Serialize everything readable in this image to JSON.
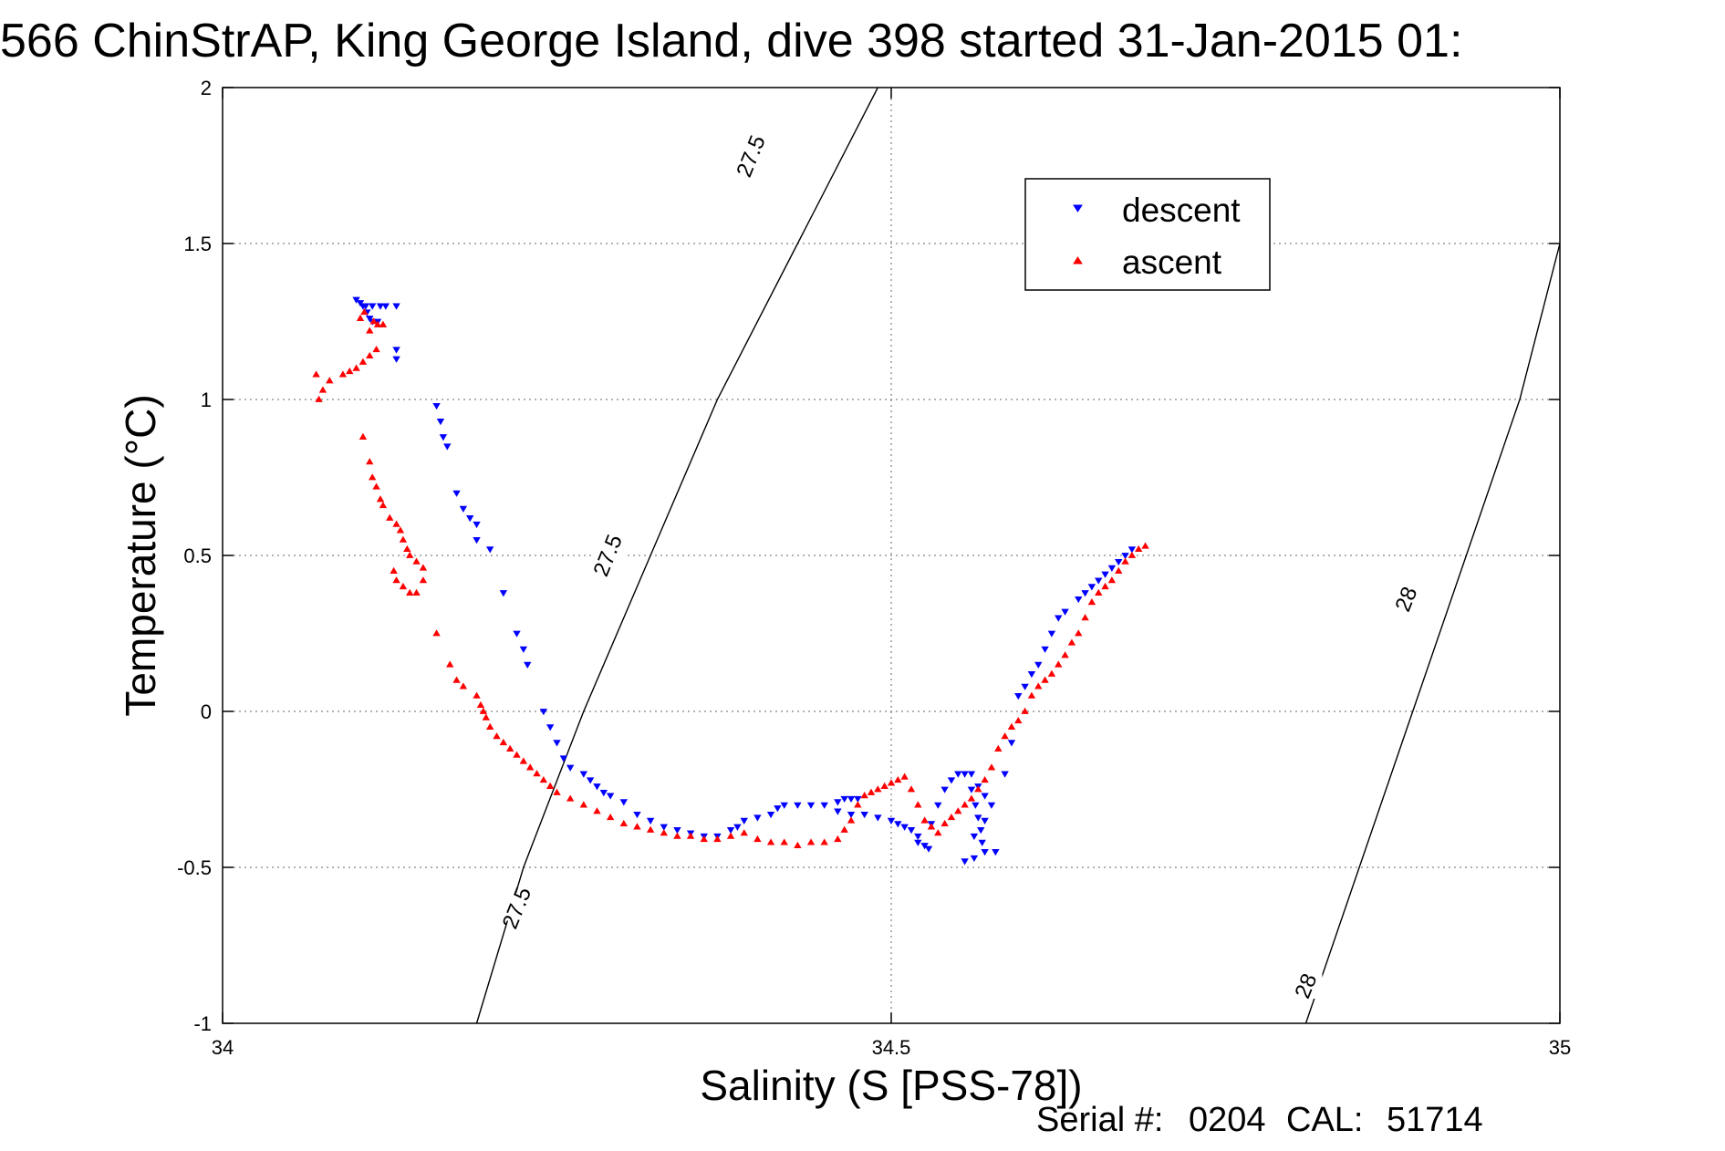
{
  "chart_data": {
    "type": "scatter",
    "title": "566 ChinStrAP, King George Island, dive 398 started 31-Jan-2015 01:",
    "xlabel": "Salinity (S [PSS-78])",
    "ylabel": "Temperature (°C)",
    "xlim": [
      34,
      35
    ],
    "ylim": [
      -1,
      2
    ],
    "xticks": [
      34,
      34.5,
      35
    ],
    "xtick_labels": [
      "34",
      "34.5",
      "35"
    ],
    "yticks": [
      -1,
      -0.5,
      0,
      0.5,
      1,
      1.5,
      2
    ],
    "ytick_labels": [
      "-1",
      "-0.5",
      "0",
      "0.5",
      "1",
      "1.5",
      "2"
    ],
    "grid": true,
    "legend": {
      "location": "top-right",
      "entries": [
        "descent",
        "ascent"
      ]
    },
    "series": [
      {
        "name": "descent",
        "color": "#0000ff",
        "marker": "triangle-down",
        "points": [
          [
            34.1,
            1.32
          ],
          [
            34.103,
            1.31
          ],
          [
            34.107,
            1.3
          ],
          [
            34.112,
            1.3
          ],
          [
            34.118,
            1.3
          ],
          [
            34.122,
            1.3
          ],
          [
            34.13,
            1.3
          ],
          [
            34.105,
            1.3
          ],
          [
            34.108,
            1.28
          ],
          [
            34.11,
            1.26
          ],
          [
            34.112,
            1.25
          ],
          [
            34.116,
            1.25
          ],
          [
            34.13,
            1.16
          ],
          [
            34.13,
            1.13
          ],
          [
            34.16,
            0.98
          ],
          [
            34.163,
            0.93
          ],
          [
            34.165,
            0.88
          ],
          [
            34.168,
            0.85
          ],
          [
            34.175,
            0.7
          ],
          [
            34.18,
            0.65
          ],
          [
            34.185,
            0.62
          ],
          [
            34.19,
            0.6
          ],
          [
            34.19,
            0.55
          ],
          [
            34.2,
            0.52
          ],
          [
            34.21,
            0.38
          ],
          [
            34.22,
            0.25
          ],
          [
            34.225,
            0.2
          ],
          [
            34.228,
            0.15
          ],
          [
            34.24,
            0.0
          ],
          [
            34.245,
            -0.05
          ],
          [
            34.25,
            -0.1
          ],
          [
            34.255,
            -0.15
          ],
          [
            34.26,
            -0.18
          ],
          [
            34.27,
            -0.2
          ],
          [
            34.275,
            -0.22
          ],
          [
            34.28,
            -0.24
          ],
          [
            34.285,
            -0.26
          ],
          [
            34.29,
            -0.27
          ],
          [
            34.3,
            -0.29
          ],
          [
            34.31,
            -0.33
          ],
          [
            34.32,
            -0.35
          ],
          [
            34.33,
            -0.37
          ],
          [
            34.34,
            -0.38
          ],
          [
            34.35,
            -0.39
          ],
          [
            34.36,
            -0.4
          ],
          [
            34.37,
            -0.4
          ],
          [
            34.38,
            -0.38
          ],
          [
            34.385,
            -0.37
          ],
          [
            34.39,
            -0.35
          ],
          [
            34.4,
            -0.34
          ],
          [
            34.41,
            -0.33
          ],
          [
            34.415,
            -0.31
          ],
          [
            34.42,
            -0.3
          ],
          [
            34.43,
            -0.3
          ],
          [
            34.44,
            -0.3
          ],
          [
            34.45,
            -0.3
          ],
          [
            34.46,
            -0.29
          ],
          [
            34.465,
            -0.28
          ],
          [
            34.47,
            -0.28
          ],
          [
            34.475,
            -0.28
          ],
          [
            34.46,
            -0.32
          ],
          [
            34.47,
            -0.33
          ],
          [
            34.48,
            -0.33
          ],
          [
            34.49,
            -0.34
          ],
          [
            34.5,
            -0.35
          ],
          [
            34.505,
            -0.36
          ],
          [
            34.51,
            -0.37
          ],
          [
            34.515,
            -0.38
          ],
          [
            34.52,
            -0.4
          ],
          [
            34.52,
            -0.42
          ],
          [
            34.525,
            -0.43
          ],
          [
            34.528,
            -0.44
          ],
          [
            34.53,
            -0.36
          ],
          [
            34.535,
            -0.3
          ],
          [
            34.54,
            -0.25
          ],
          [
            34.545,
            -0.22
          ],
          [
            34.55,
            -0.2
          ],
          [
            34.555,
            -0.2
          ],
          [
            34.56,
            -0.2
          ],
          [
            34.56,
            -0.25
          ],
          [
            34.563,
            -0.3
          ],
          [
            34.565,
            -0.34
          ],
          [
            34.567,
            -0.38
          ],
          [
            34.568,
            -0.42
          ],
          [
            34.57,
            -0.45
          ],
          [
            34.562,
            -0.47
          ],
          [
            34.555,
            -0.48
          ],
          [
            34.562,
            -0.4
          ],
          [
            34.57,
            -0.35
          ],
          [
            34.565,
            -0.24
          ],
          [
            34.57,
            -0.27
          ],
          [
            34.575,
            -0.3
          ],
          [
            34.578,
            -0.45
          ],
          [
            34.585,
            -0.2
          ],
          [
            34.59,
            -0.1
          ],
          [
            34.595,
            0.05
          ],
          [
            34.6,
            0.08
          ],
          [
            34.605,
            0.12
          ],
          [
            34.61,
            0.15
          ],
          [
            34.615,
            0.2
          ],
          [
            34.62,
            0.25
          ],
          [
            34.625,
            0.3
          ],
          [
            34.63,
            0.32
          ],
          [
            34.64,
            0.36
          ],
          [
            34.645,
            0.38
          ],
          [
            34.65,
            0.4
          ],
          [
            34.655,
            0.42
          ],
          [
            34.66,
            0.44
          ],
          [
            34.665,
            0.46
          ],
          [
            34.67,
            0.48
          ],
          [
            34.675,
            0.5
          ],
          [
            34.68,
            0.52
          ]
        ]
      },
      {
        "name": "ascent",
        "color": "#ff0000",
        "marker": "triangle-up",
        "points": [
          [
            34.07,
            1.08
          ],
          [
            34.072,
            1.0
          ],
          [
            34.075,
            1.03
          ],
          [
            34.08,
            1.06
          ],
          [
            34.09,
            1.08
          ],
          [
            34.095,
            1.09
          ],
          [
            34.1,
            1.1
          ],
          [
            34.105,
            1.12
          ],
          [
            34.11,
            1.14
          ],
          [
            34.115,
            1.16
          ],
          [
            34.103,
            1.26
          ],
          [
            34.106,
            1.28
          ],
          [
            34.11,
            1.22
          ],
          [
            34.113,
            1.25
          ],
          [
            34.116,
            1.24
          ],
          [
            34.12,
            1.24
          ],
          [
            34.105,
            0.88
          ],
          [
            34.11,
            0.8
          ],
          [
            34.112,
            0.75
          ],
          [
            34.115,
            0.72
          ],
          [
            34.118,
            0.68
          ],
          [
            34.12,
            0.66
          ],
          [
            34.125,
            0.62
          ],
          [
            34.13,
            0.6
          ],
          [
            34.133,
            0.58
          ],
          [
            34.135,
            0.55
          ],
          [
            34.138,
            0.52
          ],
          [
            34.14,
            0.5
          ],
          [
            34.145,
            0.48
          ],
          [
            34.15,
            0.46
          ],
          [
            34.128,
            0.45
          ],
          [
            34.13,
            0.42
          ],
          [
            34.135,
            0.4
          ],
          [
            34.14,
            0.38
          ],
          [
            34.145,
            0.38
          ],
          [
            34.15,
            0.42
          ],
          [
            34.16,
            0.25
          ],
          [
            34.17,
            0.15
          ],
          [
            34.175,
            0.1
          ],
          [
            34.18,
            0.08
          ],
          [
            34.19,
            0.05
          ],
          [
            34.193,
            0.02
          ],
          [
            34.195,
            0.0
          ],
          [
            34.197,
            -0.02
          ],
          [
            34.2,
            -0.05
          ],
          [
            34.205,
            -0.08
          ],
          [
            34.21,
            -0.1
          ],
          [
            34.215,
            -0.12
          ],
          [
            34.22,
            -0.14
          ],
          [
            34.225,
            -0.16
          ],
          [
            34.23,
            -0.18
          ],
          [
            34.235,
            -0.2
          ],
          [
            34.24,
            -0.22
          ],
          [
            34.245,
            -0.24
          ],
          [
            34.25,
            -0.26
          ],
          [
            34.26,
            -0.28
          ],
          [
            34.27,
            -0.3
          ],
          [
            34.28,
            -0.32
          ],
          [
            34.29,
            -0.34
          ],
          [
            34.3,
            -0.36
          ],
          [
            34.31,
            -0.37
          ],
          [
            34.32,
            -0.38
          ],
          [
            34.33,
            -0.39
          ],
          [
            34.34,
            -0.4
          ],
          [
            34.35,
            -0.4
          ],
          [
            34.36,
            -0.41
          ],
          [
            34.37,
            -0.41
          ],
          [
            34.38,
            -0.4
          ],
          [
            34.39,
            -0.39
          ],
          [
            34.4,
            -0.41
          ],
          [
            34.41,
            -0.42
          ],
          [
            34.42,
            -0.42
          ],
          [
            34.43,
            -0.43
          ],
          [
            34.44,
            -0.42
          ],
          [
            34.45,
            -0.42
          ],
          [
            34.46,
            -0.41
          ],
          [
            34.465,
            -0.38
          ],
          [
            34.47,
            -0.35
          ],
          [
            34.475,
            -0.3
          ],
          [
            34.48,
            -0.27
          ],
          [
            34.485,
            -0.26
          ],
          [
            34.49,
            -0.25
          ],
          [
            34.495,
            -0.24
          ],
          [
            34.5,
            -0.23
          ],
          [
            34.505,
            -0.22
          ],
          [
            34.51,
            -0.21
          ],
          [
            34.515,
            -0.25
          ],
          [
            34.52,
            -0.3
          ],
          [
            34.525,
            -0.35
          ],
          [
            34.53,
            -0.37
          ],
          [
            34.535,
            -0.39
          ],
          [
            34.54,
            -0.36
          ],
          [
            34.545,
            -0.34
          ],
          [
            34.55,
            -0.32
          ],
          [
            34.555,
            -0.3
          ],
          [
            34.56,
            -0.28
          ],
          [
            34.565,
            -0.25
          ],
          [
            34.57,
            -0.22
          ],
          [
            34.575,
            -0.18
          ],
          [
            34.58,
            -0.12
          ],
          [
            34.585,
            -0.08
          ],
          [
            34.59,
            -0.05
          ],
          [
            34.595,
            -0.03
          ],
          [
            34.6,
            0.0
          ],
          [
            34.605,
            0.05
          ],
          [
            34.61,
            0.08
          ],
          [
            34.615,
            0.1
          ],
          [
            34.62,
            0.12
          ],
          [
            34.625,
            0.15
          ],
          [
            34.63,
            0.18
          ],
          [
            34.635,
            0.22
          ],
          [
            34.64,
            0.25
          ],
          [
            34.645,
            0.3
          ],
          [
            34.65,
            0.35
          ],
          [
            34.655,
            0.38
          ],
          [
            34.66,
            0.4
          ],
          [
            34.665,
            0.42
          ],
          [
            34.67,
            0.45
          ],
          [
            34.675,
            0.48
          ],
          [
            34.68,
            0.5
          ],
          [
            34.685,
            0.52
          ],
          [
            34.69,
            0.53
          ]
        ]
      }
    ],
    "contours": [
      {
        "label": "27.5",
        "points": [
          [
            34.19,
            -1.0
          ],
          [
            34.225,
            -0.5
          ],
          [
            34.27,
            0.0
          ],
          [
            34.32,
            0.5
          ],
          [
            34.37,
            1.0
          ],
          [
            34.43,
            1.5
          ],
          [
            34.49,
            2.0
          ]
        ],
        "labels_at": [
          [
            34.22,
            -0.63
          ],
          [
            34.288,
            0.5
          ],
          [
            34.395,
            1.78
          ]
        ]
      },
      {
        "label": "28",
        "points": [
          [
            34.81,
            -1.0
          ],
          [
            34.85,
            -0.5
          ],
          [
            34.89,
            0.0
          ],
          [
            34.93,
            0.5
          ],
          [
            34.97,
            1.0
          ],
          [
            35.0,
            1.5
          ]
        ],
        "labels_at": [
          [
            34.81,
            -0.88
          ],
          [
            34.885,
            0.36
          ]
        ]
      }
    ]
  },
  "footer": {
    "serial_label": "Serial #:",
    "serial_value": "0204",
    "cal_label": "CAL:",
    "cal_value": "51714"
  }
}
